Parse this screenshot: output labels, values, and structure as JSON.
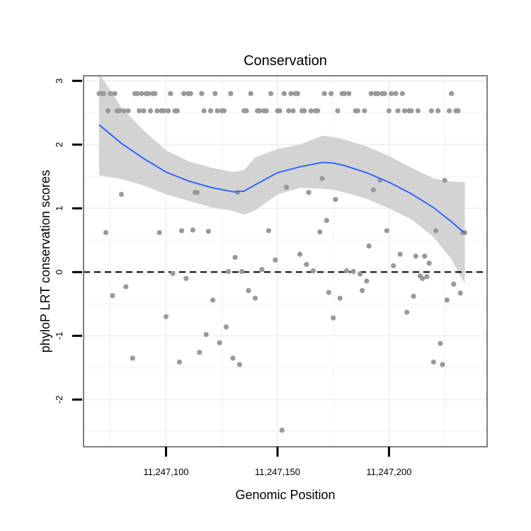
{
  "chart_data": {
    "type": "scatter",
    "title": "Conservation",
    "xlabel": "Genomic Position",
    "ylabel": "phyloP LRT conservation scores",
    "xlim": [
      11247063,
      11247244
    ],
    "ylim": [
      -2.74,
      3.08
    ],
    "x_ticks": [
      11247100,
      11247150,
      11247200
    ],
    "x_tick_labels": [
      "11,247,100",
      "11,247,150",
      "11,247,200"
    ],
    "y_ticks": [
      -2,
      -1,
      0,
      1,
      2,
      3
    ],
    "y_tick_labels": [
      "-2",
      "-1",
      "0",
      "1",
      "2",
      "3"
    ],
    "reference_line": {
      "y": 0,
      "style": "dashed"
    },
    "colors": {
      "points": "#999999",
      "smooth": "#3366ff",
      "band": "#d3d3d3",
      "grid": "#f0f0f0",
      "panel_border": "#7f7f7f",
      "ref_line": "#000000"
    },
    "series": [
      {
        "name": "scores",
        "points": [
          {
            "x": 11247070,
            "y": 2.8
          },
          {
            "x": 11247071,
            "y": 2.8
          },
          {
            "x": 11247072,
            "y": 2.8
          },
          {
            "x": 11247073,
            "y": 0.62
          },
          {
            "x": 11247074,
            "y": 2.53
          },
          {
            "x": 11247075,
            "y": 2.8
          },
          {
            "x": 11247076,
            "y": -0.37
          },
          {
            "x": 11247077,
            "y": 2.8
          },
          {
            "x": 11247078,
            "y": 2.53
          },
          {
            "x": 11247079,
            "y": 2.53
          },
          {
            "x": 11247080,
            "y": 1.22
          },
          {
            "x": 11247081,
            "y": 2.53
          },
          {
            "x": 11247082,
            "y": -0.23
          },
          {
            "x": 11247083,
            "y": 2.53
          },
          {
            "x": 11247085,
            "y": -1.35
          },
          {
            "x": 11247086,
            "y": 2.8
          },
          {
            "x": 11247087,
            "y": 2.8
          },
          {
            "x": 11247088,
            "y": 2.53
          },
          {
            "x": 11247089,
            "y": 2.8
          },
          {
            "x": 11247090,
            "y": 2.53
          },
          {
            "x": 11247091,
            "y": 2.8
          },
          {
            "x": 11247092,
            "y": 2.8
          },
          {
            "x": 11247093,
            "y": 2.53
          },
          {
            "x": 11247094,
            "y": 2.8
          },
          {
            "x": 11247095,
            "y": 2.8
          },
          {
            "x": 11247096,
            "y": 2.53
          },
          {
            "x": 11247097,
            "y": 0.62
          },
          {
            "x": 11247098,
            "y": 2.53
          },
          {
            "x": 11247099,
            "y": 2.53
          },
          {
            "x": 11247100,
            "y": -0.7
          },
          {
            "x": 11247101,
            "y": 2.53
          },
          {
            "x": 11247102,
            "y": 2.8
          },
          {
            "x": 11247103,
            "y": -0.02
          },
          {
            "x": 11247104,
            "y": 2.53
          },
          {
            "x": 11247105,
            "y": 2.53
          },
          {
            "x": 11247106,
            "y": -1.41
          },
          {
            "x": 11247107,
            "y": 0.65
          },
          {
            "x": 11247108,
            "y": 2.8
          },
          {
            "x": 11247109,
            "y": -0.1
          },
          {
            "x": 11247110,
            "y": 2.8
          },
          {
            "x": 11247111,
            "y": 2.8
          },
          {
            "x": 11247112,
            "y": 0.66
          },
          {
            "x": 11247113,
            "y": 1.25
          },
          {
            "x": 11247114,
            "y": 1.25
          },
          {
            "x": 11247115,
            "y": -1.26
          },
          {
            "x": 11247116,
            "y": 2.8
          },
          {
            "x": 11247117,
            "y": 2.53
          },
          {
            "x": 11247118,
            "y": -0.98
          },
          {
            "x": 11247119,
            "y": 0.64
          },
          {
            "x": 11247120,
            "y": 2.53
          },
          {
            "x": 11247121,
            "y": -0.44
          },
          {
            "x": 11247122,
            "y": 2.8
          },
          {
            "x": 11247123,
            "y": 2.53
          },
          {
            "x": 11247124,
            "y": -1.11
          },
          {
            "x": 11247125,
            "y": 2.53
          },
          {
            "x": 11247126,
            "y": 2.53
          },
          {
            "x": 11247127,
            "y": -0.86
          },
          {
            "x": 11247128,
            "y": 0.01
          },
          {
            "x": 11247129,
            "y": 2.8
          },
          {
            "x": 11247130,
            "y": -1.35
          },
          {
            "x": 11247131,
            "y": 0.23
          },
          {
            "x": 11247132,
            "y": 1.25
          },
          {
            "x": 11247133,
            "y": -1.45
          },
          {
            "x": 11247134,
            "y": 0.01
          },
          {
            "x": 11247135,
            "y": 2.53
          },
          {
            "x": 11247136,
            "y": 2.53
          },
          {
            "x": 11247137,
            "y": -0.29
          },
          {
            "x": 11247138,
            "y": 2.8
          },
          {
            "x": 11247140,
            "y": -0.41
          },
          {
            "x": 11247141,
            "y": 2.53
          },
          {
            "x": 11247142,
            "y": 2.53
          },
          {
            "x": 11247143,
            "y": 0.04
          },
          {
            "x": 11247144,
            "y": 2.53
          },
          {
            "x": 11247145,
            "y": 2.53
          },
          {
            "x": 11247146,
            "y": 0.65
          },
          {
            "x": 11247147,
            "y": 2.8
          },
          {
            "x": 11247149,
            "y": 0.19
          },
          {
            "x": 11247150,
            "y": 2.53
          },
          {
            "x": 11247151,
            "y": 2.53
          },
          {
            "x": 11247152,
            "y": -2.48
          },
          {
            "x": 11247153,
            "y": 2.8
          },
          {
            "x": 11247154,
            "y": 1.33
          },
          {
            "x": 11247155,
            "y": 2.53
          },
          {
            "x": 11247156,
            "y": 2.8
          },
          {
            "x": 11247157,
            "y": 2.53
          },
          {
            "x": 11247158,
            "y": 2.8
          },
          {
            "x": 11247159,
            "y": 2.8
          },
          {
            "x": 11247160,
            "y": 0.28
          },
          {
            "x": 11247161,
            "y": 2.53
          },
          {
            "x": 11247162,
            "y": 2.53
          },
          {
            "x": 11247163,
            "y": 0.12
          },
          {
            "x": 11247164,
            "y": 1.25
          },
          {
            "x": 11247165,
            "y": 2.53
          },
          {
            "x": 11247166,
            "y": 0.02
          },
          {
            "x": 11247167,
            "y": 2.53
          },
          {
            "x": 11247168,
            "y": 2.53
          },
          {
            "x": 11247169,
            "y": 0.63
          },
          {
            "x": 11247170,
            "y": 1.47
          },
          {
            "x": 11247171,
            "y": 2.8
          },
          {
            "x": 11247172,
            "y": 0.81
          },
          {
            "x": 11247173,
            "y": -0.32
          },
          {
            "x": 11247174,
            "y": 2.8
          },
          {
            "x": 11247175,
            "y": -0.72
          },
          {
            "x": 11247176,
            "y": 1.14
          },
          {
            "x": 11247177,
            "y": 2.53
          },
          {
            "x": 11247178,
            "y": -0.41
          },
          {
            "x": 11247179,
            "y": 2.8
          },
          {
            "x": 11247180,
            "y": 2.8
          },
          {
            "x": 11247181,
            "y": 0.02
          },
          {
            "x": 11247182,
            "y": 2.8
          },
          {
            "x": 11247184,
            "y": 0.01
          },
          {
            "x": 11247185,
            "y": 2.53
          },
          {
            "x": 11247186,
            "y": 2.53
          },
          {
            "x": 11247187,
            "y": -0.03
          },
          {
            "x": 11247188,
            "y": -0.29
          },
          {
            "x": 11247189,
            "y": 2.53
          },
          {
            "x": 11247190,
            "y": -0.14
          },
          {
            "x": 11247191,
            "y": 0.41
          },
          {
            "x": 11247192,
            "y": 2.8
          },
          {
            "x": 11247193,
            "y": 1.29
          },
          {
            "x": 11247194,
            "y": 2.8
          },
          {
            "x": 11247195,
            "y": 2.8
          },
          {
            "x": 11247196,
            "y": 1.44
          },
          {
            "x": 11247197,
            "y": 2.8
          },
          {
            "x": 11247198,
            "y": 2.8
          },
          {
            "x": 11247199,
            "y": 0.65
          },
          {
            "x": 11247200,
            "y": 2.53
          },
          {
            "x": 11247201,
            "y": 2.8
          },
          {
            "x": 11247202,
            "y": 0.1
          },
          {
            "x": 11247203,
            "y": 2.8
          },
          {
            "x": 11247204,
            "y": 2.53
          },
          {
            "x": 11247205,
            "y": 0.28
          },
          {
            "x": 11247206,
            "y": 2.8
          },
          {
            "x": 11247207,
            "y": 2.53
          },
          {
            "x": 11247208,
            "y": -0.63
          },
          {
            "x": 11247209,
            "y": 2.53
          },
          {
            "x": 11247210,
            "y": 2.53
          },
          {
            "x": 11247211,
            "y": -0.38
          },
          {
            "x": 11247212,
            "y": 0.25
          },
          {
            "x": 11247213,
            "y": 2.53
          },
          {
            "x": 11247214,
            "y": -0.06
          },
          {
            "x": 11247215,
            "y": -0.1
          },
          {
            "x": 11247216,
            "y": 0.25
          },
          {
            "x": 11247217,
            "y": -0.07
          },
          {
            "x": 11247218,
            "y": 0.14
          },
          {
            "x": 11247219,
            "y": 2.53
          },
          {
            "x": 11247220,
            "y": -1.41
          },
          {
            "x": 11247221,
            "y": 0.65
          },
          {
            "x": 11247222,
            "y": 2.53
          },
          {
            "x": 11247223,
            "y": -1.12
          },
          {
            "x": 11247224,
            "y": -1.45
          },
          {
            "x": 11247225,
            "y": 1.44
          },
          {
            "x": 11247226,
            "y": -0.44
          },
          {
            "x": 11247227,
            "y": 2.53
          },
          {
            "x": 11247228,
            "y": 2.8
          },
          {
            "x": 11247229,
            "y": -0.19
          },
          {
            "x": 11247230,
            "y": 2.53
          },
          {
            "x": 11247231,
            "y": 2.53
          },
          {
            "x": 11247232,
            "y": -0.33
          },
          {
            "x": 11247233,
            "y": 0.62
          },
          {
            "x": 11247234,
            "y": 0.62
          }
        ]
      }
    ],
    "smooth": {
      "name": "loess fit",
      "x": [
        11247070,
        11247080,
        11247090,
        11247100,
        11247110,
        11247120,
        11247130,
        11247135,
        11247140,
        11247150,
        11247160,
        11247170,
        11247175,
        11247180,
        11247190,
        11247200,
        11247210,
        11247220,
        11247228,
        11247234
      ],
      "y": [
        2.31,
        2.02,
        1.78,
        1.57,
        1.43,
        1.33,
        1.26,
        1.27,
        1.37,
        1.56,
        1.65,
        1.72,
        1.71,
        1.67,
        1.56,
        1.41,
        1.23,
        1.01,
        0.79,
        0.61
      ],
      "lower": [
        1.52,
        1.46,
        1.36,
        1.22,
        1.12,
        1.02,
        0.96,
        0.9,
        0.97,
        1.22,
        1.32,
        1.31,
        1.29,
        1.25,
        1.15,
        1.0,
        0.83,
        0.55,
        0.2,
        -0.18
      ],
      "upper": [
        3.12,
        2.58,
        2.22,
        1.91,
        1.74,
        1.64,
        1.57,
        1.6,
        1.8,
        1.93,
        2.0,
        2.14,
        2.12,
        2.08,
        1.97,
        1.82,
        1.64,
        1.47,
        1.42,
        1.41
      ]
    }
  }
}
